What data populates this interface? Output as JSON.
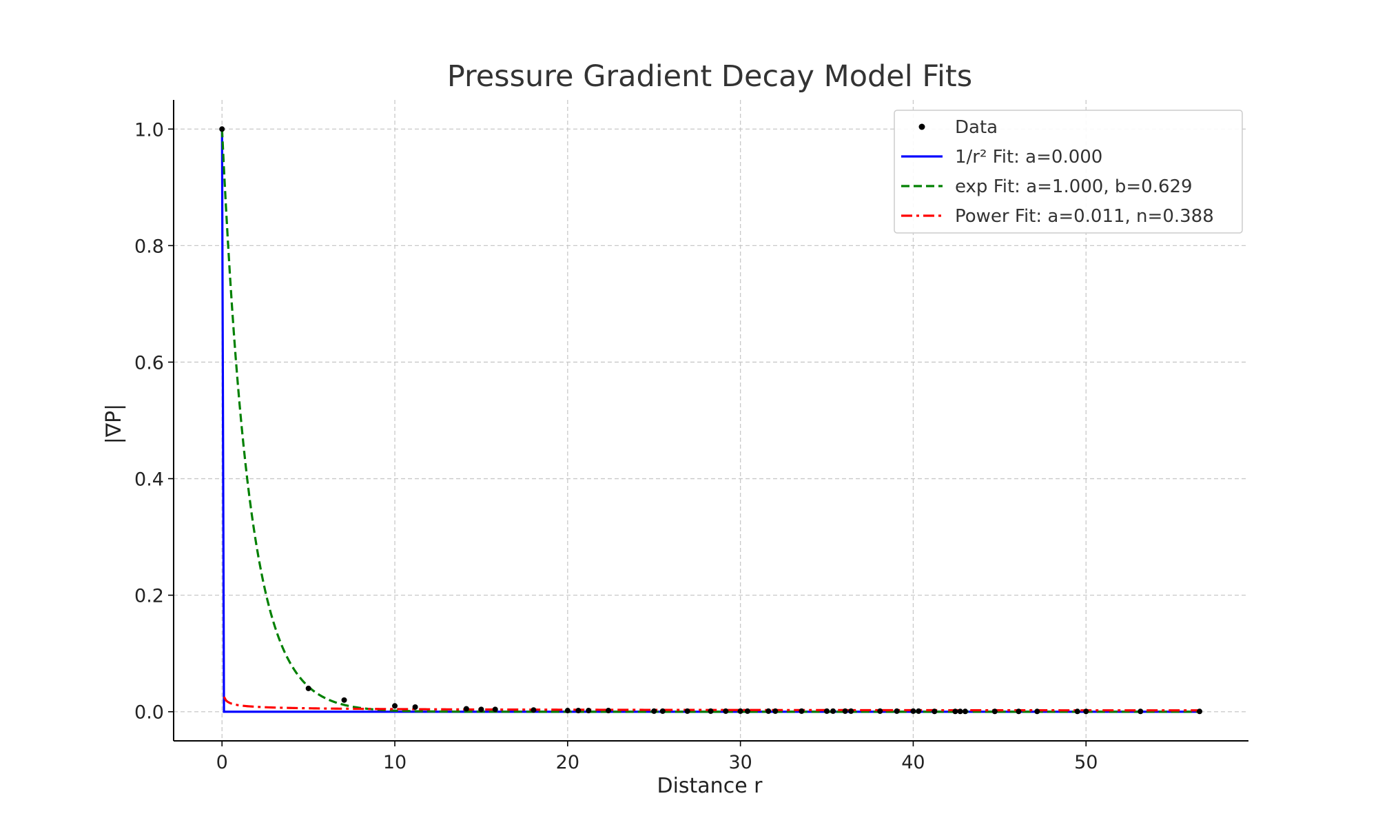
{
  "chart_data": {
    "type": "line",
    "title": "Pressure Gradient Decay Model Fits",
    "xlabel": "Distance r",
    "ylabel": "|∇P|",
    "xlim": [
      -2.8,
      59.4
    ],
    "ylim": [
      -0.05,
      1.05
    ],
    "xticks": [
      0,
      10,
      20,
      30,
      40,
      50
    ],
    "xtick_labels": [
      "0",
      "10",
      "20",
      "30",
      "40",
      "50"
    ],
    "yticks": [
      0.0,
      0.2,
      0.4,
      0.6,
      0.8,
      1.0
    ],
    "ytick_labels": [
      "0.0",
      "0.2",
      "0.4",
      "0.6",
      "0.8",
      "1.0"
    ],
    "grid": true,
    "legend_position": "top-right",
    "scatter": {
      "name": "Data",
      "color": "#000000",
      "points": [
        [
          0,
          1.0
        ],
        [
          5.0,
          0.04
        ],
        [
          7.07,
          0.02
        ],
        [
          10.0,
          0.01
        ],
        [
          11.18,
          0.008
        ],
        [
          14.14,
          0.005
        ],
        [
          15.0,
          0.004
        ],
        [
          15.81,
          0.004
        ],
        [
          18.03,
          0.003
        ],
        [
          20.0,
          0.002
        ],
        [
          20.62,
          0.002
        ],
        [
          21.21,
          0.002
        ],
        [
          22.36,
          0.002
        ],
        [
          25.0,
          0.001
        ],
        [
          25.5,
          0.001
        ],
        [
          26.93,
          0.001
        ],
        [
          28.28,
          0.001
        ],
        [
          29.15,
          0.001
        ],
        [
          30.0,
          0.001
        ],
        [
          30.41,
          0.001
        ],
        [
          31.62,
          0.001
        ],
        [
          32.02,
          0.001
        ],
        [
          33.54,
          0.001
        ],
        [
          35.0,
          0.001
        ],
        [
          35.36,
          0.001
        ],
        [
          36.06,
          0.001
        ],
        [
          36.4,
          0.001
        ],
        [
          38.08,
          0.001
        ],
        [
          39.05,
          0.001
        ],
        [
          40.0,
          0.001
        ],
        [
          40.31,
          0.001
        ],
        [
          41.23,
          0.0005
        ],
        [
          42.43,
          0.0005
        ],
        [
          42.72,
          0.0005
        ],
        [
          43.01,
          0.0005
        ],
        [
          44.72,
          0.0005
        ],
        [
          46.1,
          0.0005
        ],
        [
          47.17,
          0.0005
        ],
        [
          49.5,
          0.0005
        ],
        [
          50.0,
          0.0005
        ],
        [
          53.15,
          0.0005
        ],
        [
          56.57,
          0.0005
        ]
      ]
    },
    "series": [
      {
        "name": "1/r² Fit: a=0.000",
        "model": "inverse_square",
        "a": 0.0,
        "color": "#0000ff",
        "dash": "solid"
      },
      {
        "name": "exp Fit: a=1.000, b=0.629",
        "model": "exponential",
        "a": 1.0,
        "b": 0.629,
        "color": "#008000",
        "dash": "dashed"
      },
      {
        "name": "Power Fit: a=0.011, n=0.388",
        "model": "power",
        "a": 0.011,
        "n": 0.388,
        "color": "#ff0000",
        "dash": "dashdot"
      }
    ],
    "x_range": [
      0,
      56.57
    ]
  }
}
